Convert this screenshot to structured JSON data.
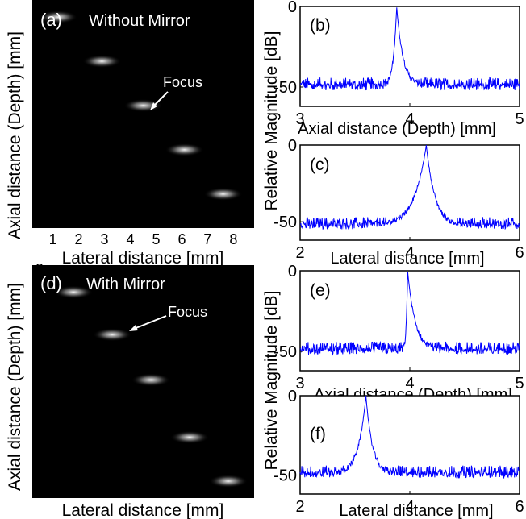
{
  "figure": {
    "left_column": {
      "ylabel": "Axial distance (Depth) [mm]",
      "xlabel": "Lateral distance [mm]"
    },
    "right_column": {
      "ylabel": "Relative Magnitude [dB]"
    }
  },
  "chart_data": [
    {
      "panel": "(a)",
      "type": "heatmap",
      "title": "Without Mirror",
      "annotation": "Focus",
      "xlabel": "Lateral distance [mm]",
      "ylabel": "",
      "xlim": [
        0.2,
        8.8
      ],
      "ylim": [
        2.4,
        5.75
      ],
      "y_inverted": true,
      "xticks": [
        1,
        2,
        3,
        4,
        5,
        6,
        7,
        8
      ],
      "yticks": [
        3,
        4,
        5
      ],
      "colormap": "gray",
      "background": "#000000",
      "points": [
        {
          "x": 1.2,
          "y": 2.65
        },
        {
          "x": 2.9,
          "y": 3.3
        },
        {
          "x": 4.5,
          "y": 3.95
        },
        {
          "x": 6.1,
          "y": 4.6
        },
        {
          "x": 7.6,
          "y": 5.25
        }
      ]
    },
    {
      "panel": "(b)",
      "type": "line",
      "xlabel": "Axial distance (Depth) [mm]",
      "ylabel": "",
      "xlim": [
        3,
        5
      ],
      "ylim": [
        -62,
        0
      ],
      "xticks": [
        3,
        4,
        5
      ],
      "yticks": [
        0,
        -50
      ],
      "series_color": "#0000ff",
      "series": [
        {
          "peak_x": 3.88,
          "peak_y": 0,
          "noise_floor": -50
        }
      ]
    },
    {
      "panel": "(c)",
      "type": "line",
      "xlabel": "Lateral distance [mm]",
      "ylabel": "",
      "xlim": [
        2,
        6
      ],
      "ylim": [
        -62,
        0
      ],
      "xticks": [
        2,
        4,
        6
      ],
      "yticks": [
        0,
        -50
      ],
      "series_color": "#0000ff",
      "series": [
        {
          "peak_x": 4.3,
          "peak_y": 0,
          "noise_floor": -53
        }
      ]
    },
    {
      "panel": "(d)",
      "type": "heatmap",
      "title": "With Mirror",
      "annotation": "Focus",
      "xlabel": "Lateral distance [mm]",
      "ylabel": "",
      "xlim": [
        0.2,
        8.8
      ],
      "ylim": [
        2.95,
        6.4
      ],
      "y_inverted": true,
      "xticks": [
        1,
        2,
        3,
        4,
        5,
        6,
        7,
        8
      ],
      "yticks": [
        3,
        4,
        5,
        6
      ],
      "colormap": "gray",
      "background": "#000000",
      "points": [
        {
          "x": 1.8,
          "y": 3.35
        },
        {
          "x": 3.3,
          "y": 3.98
        },
        {
          "x": 4.8,
          "y": 4.65
        },
        {
          "x": 6.3,
          "y": 5.5
        },
        {
          "x": 7.8,
          "y": 6.15
        }
      ]
    },
    {
      "panel": "(e)",
      "type": "line",
      "xlabel": "Axial distance (Depth) [mm]",
      "ylabel": "",
      "xlim": [
        3,
        5
      ],
      "ylim": [
        -62,
        0
      ],
      "xticks": [
        3,
        4,
        5
      ],
      "yticks": [
        0,
        -50
      ],
      "series_color": "#0000ff",
      "series": [
        {
          "peak_x": 3.98,
          "peak_y": 0,
          "noise_floor": -50
        }
      ]
    },
    {
      "panel": "(f)",
      "type": "line",
      "xlabel": "Lateral distance [mm]",
      "ylabel": "",
      "xlim": [
        2,
        6
      ],
      "ylim": [
        -62,
        0
      ],
      "xticks": [
        2,
        4,
        6
      ],
      "yticks": [
        0,
        -50
      ],
      "series_color": "#0000ff",
      "series": [
        {
          "peak_x": 3.2,
          "peak_y": 0,
          "noise_floor": -50
        }
      ]
    }
  ]
}
